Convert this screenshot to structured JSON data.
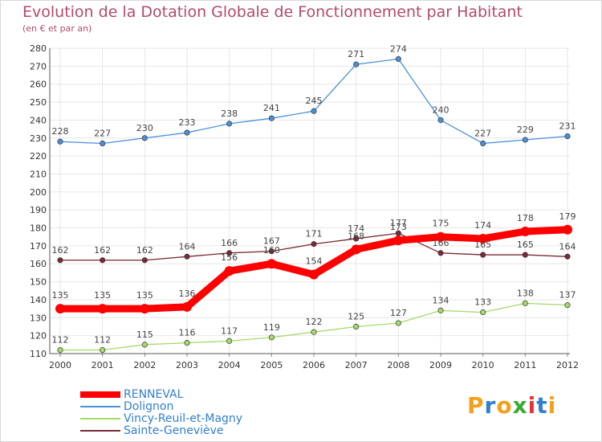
{
  "header": {
    "title": "Evolution de la Dotation Globale de Fonctionnement par Habitant",
    "subtitle": "(en € et par an)"
  },
  "logo": {
    "letters": [
      "P",
      "r",
      "o",
      "x",
      "i",
      "t",
      "i"
    ],
    "colors": [
      "#f2a01e",
      "#2f7fd1",
      "#f2a01e",
      "#3aaa35",
      "#e5323b",
      "#2f7fd1",
      "#f2a01e"
    ]
  },
  "chart_data": {
    "type": "line",
    "title": "Evolution de la Dotation Globale de Fonctionnement par Habitant",
    "subtitle": "(en € et par an)",
    "x": [
      "2000",
      "2001",
      "2002",
      "2003",
      "2004",
      "2005",
      "2006",
      "2007",
      "2008",
      "2009",
      "2010",
      "2011",
      "2012"
    ],
    "ylim": [
      110,
      280
    ],
    "yticks": [
      110,
      120,
      130,
      140,
      150,
      160,
      170,
      180,
      190,
      200,
      210,
      220,
      230,
      240,
      250,
      260,
      270,
      280
    ],
    "grid": true,
    "legend": "bottom-left",
    "series": [
      {
        "name": "RENNEVAL",
        "color": "#ff0000",
        "emphasis": true,
        "values": [
          135,
          135,
          135,
          136,
          156,
          160,
          154,
          168,
          173,
          175,
          174,
          178,
          179
        ],
        "labels": [
          "135",
          "135",
          "135",
          "136",
          "156",
          "160",
          "154",
          "168",
          "173",
          "175",
          "174",
          "178",
          "179"
        ]
      },
      {
        "name": "Dolignon",
        "color": "#4a90d9",
        "values": [
          228,
          227,
          230,
          233,
          238,
          241,
          245,
          271,
          274,
          240,
          227,
          229,
          231
        ],
        "labels": [
          "228",
          "227",
          "230",
          "233",
          "238",
          "241",
          "245",
          "271",
          "274",
          "240",
          "227",
          "229",
          "231"
        ]
      },
      {
        "name": "Vincy-Reuil-et-Magny",
        "color": "#a6d96a",
        "values": [
          112,
          112,
          115,
          116,
          117,
          119,
          122,
          125,
          127,
          134,
          133,
          138,
          137
        ],
        "labels": [
          "112",
          "112",
          "115",
          "116",
          "117",
          "119",
          "122",
          "125",
          "127",
          "134",
          "133",
          "138",
          "137"
        ]
      },
      {
        "name": "Sainte-Geneviève",
        "color": "#7a2a35",
        "values": [
          162,
          162,
          162,
          164,
          166,
          167,
          171,
          174,
          177,
          166,
          165,
          165,
          164
        ],
        "labels": [
          "162",
          "162",
          "162",
          "164",
          "166",
          "167",
          "171",
          "174",
          "177",
          "166",
          "165",
          "165",
          "164"
        ]
      }
    ]
  }
}
